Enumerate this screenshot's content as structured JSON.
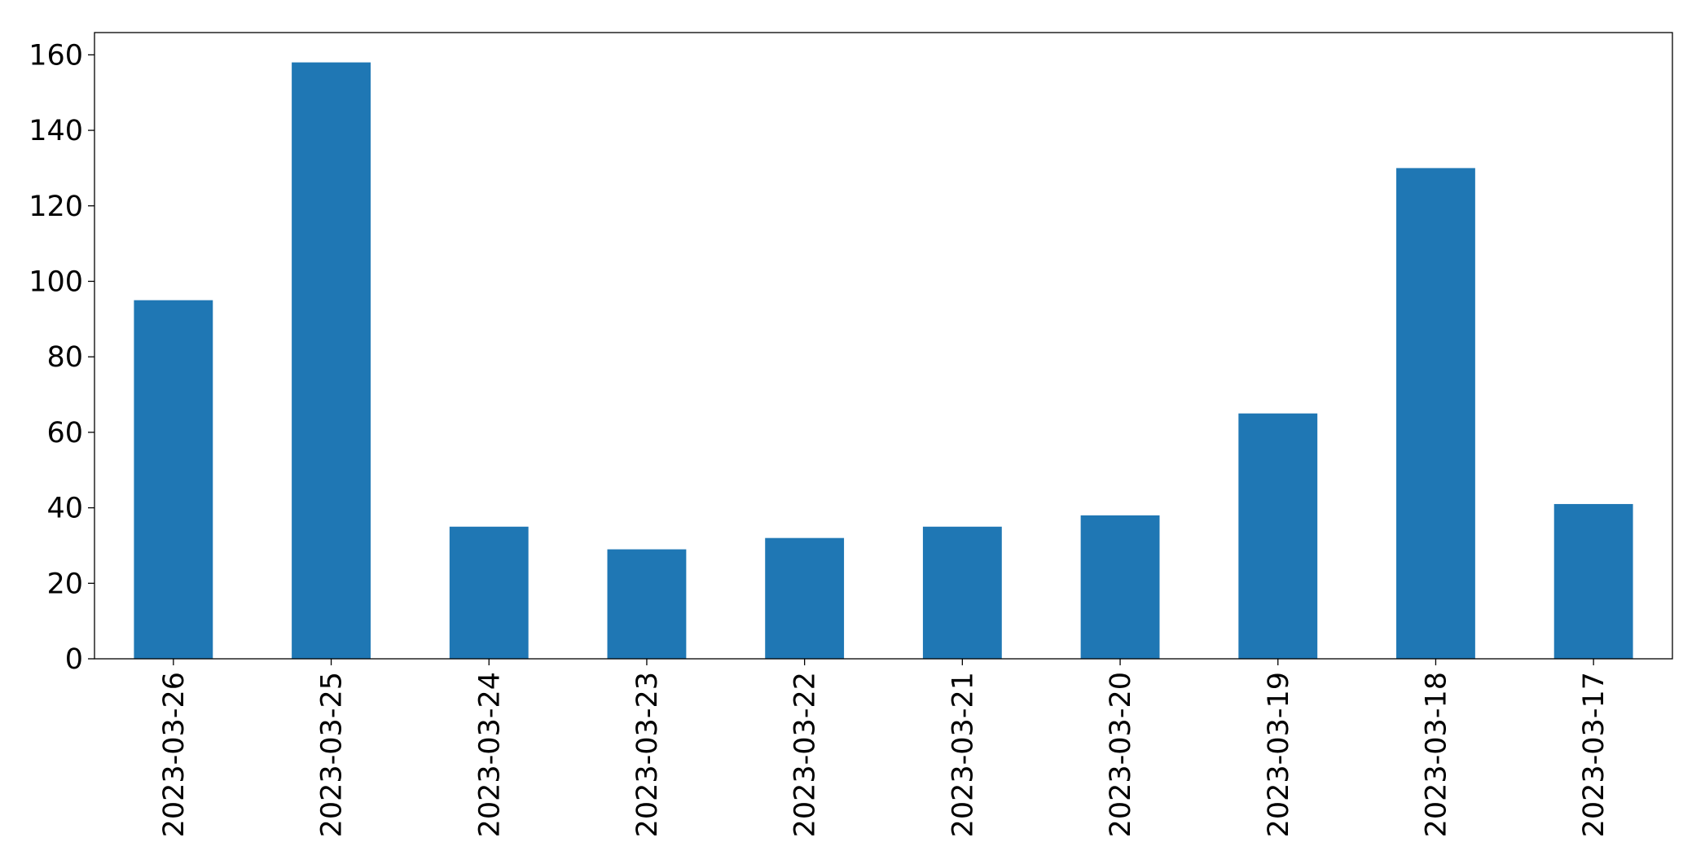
{
  "chart_data": {
    "type": "bar",
    "categories": [
      "2023-03-26",
      "2023-03-25",
      "2023-03-24",
      "2023-03-23",
      "2023-03-22",
      "2023-03-21",
      "2023-03-20",
      "2023-03-19",
      "2023-03-18",
      "2023-03-17"
    ],
    "values": [
      95,
      158,
      35,
      29,
      32,
      35,
      38,
      65,
      130,
      41
    ],
    "color": "#1f77b4",
    "ylim": [
      0,
      165.9
    ],
    "yticks": [
      0,
      20,
      40,
      60,
      80,
      100,
      120,
      140,
      160
    ],
    "grid": false
  }
}
